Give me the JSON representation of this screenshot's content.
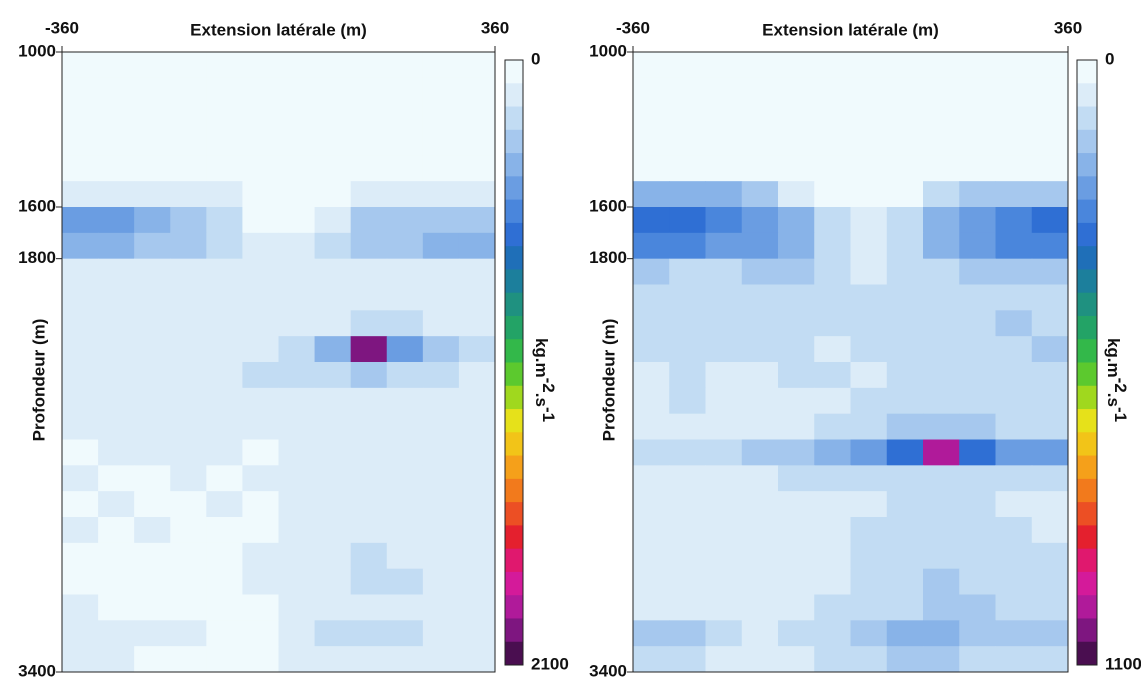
{
  "chart_data": [
    {
      "type": "heatmap",
      "xlabel": "Extension latérale (m)",
      "ylabel": "Profondeur (m)",
      "xlim": [
        -360,
        360
      ],
      "ylim": [
        3400,
        1000
      ],
      "xticks": [
        -360,
        360
      ],
      "yticks": [
        1000,
        1600,
        1800,
        3400
      ],
      "zlim": [
        0,
        2100
      ],
      "zticks": [
        0,
        2100
      ],
      "colorbar_label": [
        "kg.m",
        "-2",
        ".s",
        "-1"
      ],
      "colorscale": [
        "#f0fafd",
        "#dcecf8",
        "#c2dcf3",
        "#a6c8ee",
        "#88b3e8",
        "#6a9de2",
        "#4a86dc",
        "#2f6fd4",
        "#1f6fb8",
        "#1c7f9c",
        "#1f9180",
        "#23a366",
        "#33b84a",
        "#5cc92e",
        "#a0d81e",
        "#e6e11a",
        "#f2c418",
        "#f5a01a",
        "#f27a1c",
        "#ec4f24",
        "#e4202e",
        "#e0186e",
        "#d41a9a",
        "#b01a9a",
        "#7e1680",
        "#4a0e50"
      ],
      "x": [
        -330,
        -270,
        -210,
        -150,
        -90,
        -30,
        30,
        90,
        150,
        210,
        270,
        330
      ],
      "y": [
        1050,
        1150,
        1250,
        1350,
        1450,
        1550,
        1650,
        1750,
        1850,
        1950,
        2050,
        2150,
        2250,
        2350,
        2450,
        2550,
        2650,
        2750,
        2850,
        2950,
        3050,
        3150,
        3250,
        3350
      ],
      "z": [
        [
          0,
          0,
          0,
          0,
          0,
          0,
          0,
          0,
          0,
          0,
          0,
          0
        ],
        [
          0,
          0,
          0,
          0,
          0,
          0,
          0,
          0,
          0,
          0,
          0,
          0
        ],
        [
          0,
          0,
          0,
          0,
          0,
          0,
          0,
          0,
          0,
          0,
          0,
          0
        ],
        [
          0,
          0,
          0,
          0,
          0,
          0,
          0,
          0,
          0,
          0,
          0,
          0
        ],
        [
          0,
          0,
          0,
          0,
          0,
          0,
          0,
          0,
          0,
          0,
          0,
          0
        ],
        [
          80,
          80,
          80,
          60,
          40,
          0,
          0,
          0,
          40,
          60,
          60,
          60
        ],
        [
          350,
          350,
          300,
          250,
          100,
          0,
          0,
          60,
          200,
          250,
          250,
          250
        ],
        [
          300,
          300,
          250,
          200,
          150,
          50,
          40,
          100,
          200,
          250,
          300,
          300
        ],
        [
          40,
          60,
          60,
          40,
          80,
          60,
          40,
          60,
          80,
          60,
          40,
          40
        ],
        [
          20,
          40,
          20,
          40,
          40,
          30,
          40,
          60,
          80,
          60,
          60,
          40
        ],
        [
          30,
          30,
          20,
          20,
          30,
          40,
          30,
          80,
          120,
          100,
          80,
          60
        ],
        [
          40,
          60,
          30,
          20,
          40,
          60,
          100,
          300,
          2000,
          400,
          200,
          150
        ],
        [
          20,
          30,
          30,
          60,
          80,
          100,
          120,
          150,
          200,
          150,
          100,
          80
        ],
        [
          20,
          20,
          20,
          20,
          30,
          30,
          40,
          60,
          80,
          60,
          40,
          40
        ],
        [
          20,
          20,
          20,
          20,
          20,
          20,
          30,
          40,
          40,
          40,
          30,
          30
        ],
        [
          0,
          20,
          20,
          20,
          20,
          0,
          20,
          40,
          40,
          60,
          40,
          40
        ],
        [
          20,
          0,
          0,
          20,
          0,
          20,
          20,
          40,
          60,
          40,
          60,
          40
        ],
        [
          0,
          20,
          0,
          0,
          20,
          0,
          20,
          20,
          40,
          40,
          40,
          20
        ],
        [
          20,
          0,
          20,
          0,
          0,
          0,
          20,
          40,
          60,
          60,
          40,
          40
        ],
        [
          0,
          0,
          0,
          0,
          0,
          20,
          40,
          80,
          100,
          80,
          80,
          60
        ],
        [
          0,
          0,
          0,
          0,
          0,
          20,
          40,
          80,
          100,
          100,
          80,
          60
        ],
        [
          20,
          0,
          0,
          0,
          0,
          0,
          20,
          60,
          60,
          60,
          40,
          40
        ],
        [
          60,
          60,
          40,
          20,
          0,
          0,
          40,
          120,
          150,
          100,
          80,
          60
        ],
        [
          20,
          20,
          0,
          0,
          0,
          0,
          20,
          60,
          80,
          60,
          40,
          40
        ]
      ]
    },
    {
      "type": "heatmap",
      "xlabel": "Extension latérale (m)",
      "ylabel": "Profondeur (m)",
      "xlim": [
        -360,
        360
      ],
      "ylim": [
        3400,
        1000
      ],
      "xticks": [
        -360,
        360
      ],
      "yticks": [
        1000,
        1600,
        1800,
        3400
      ],
      "zlim": [
        0,
        1100
      ],
      "zticks": [
        0,
        1100
      ],
      "colorbar_label": [
        "kg.m",
        "-2",
        ".s",
        "-1"
      ],
      "colorscale": [
        "#f0fafd",
        "#dcecf8",
        "#c2dcf3",
        "#a6c8ee",
        "#88b3e8",
        "#6a9de2",
        "#4a86dc",
        "#2f6fd4",
        "#1f6fb8",
        "#1c7f9c",
        "#1f9180",
        "#23a366",
        "#33b84a",
        "#5cc92e",
        "#a0d81e",
        "#e6e11a",
        "#f2c418",
        "#f5a01a",
        "#f27a1c",
        "#ec4f24",
        "#e4202e",
        "#e0186e",
        "#d41a9a",
        "#b01a9a",
        "#7e1680",
        "#4a0e50"
      ],
      "x": [
        -330,
        -270,
        -210,
        -150,
        -90,
        -30,
        30,
        90,
        150,
        210,
        270,
        330
      ],
      "y": [
        1050,
        1150,
        1250,
        1350,
        1450,
        1550,
        1650,
        1750,
        1850,
        1950,
        2050,
        2150,
        2250,
        2350,
        2450,
        2550,
        2650,
        2750,
        2850,
        2950,
        3050,
        3150,
        3250,
        3350
      ],
      "z": [
        [
          0,
          0,
          0,
          0,
          0,
          0,
          0,
          0,
          0,
          0,
          0,
          0
        ],
        [
          0,
          0,
          0,
          0,
          0,
          0,
          0,
          0,
          0,
          0,
          0,
          0
        ],
        [
          0,
          0,
          0,
          0,
          0,
          0,
          0,
          0,
          0,
          0,
          0,
          0
        ],
        [
          0,
          0,
          0,
          0,
          0,
          0,
          0,
          0,
          0,
          0,
          0,
          0
        ],
        [
          0,
          0,
          0,
          0,
          0,
          0,
          0,
          0,
          0,
          0,
          0,
          0
        ],
        [
          150,
          150,
          150,
          100,
          40,
          0,
          0,
          0,
          60,
          100,
          100,
          100
        ],
        [
          300,
          300,
          250,
          200,
          150,
          60,
          20,
          80,
          150,
          200,
          250,
          300
        ],
        [
          250,
          250,
          200,
          200,
          150,
          60,
          20,
          60,
          150,
          200,
          250,
          250
        ],
        [
          100,
          80,
          60,
          120,
          100,
          60,
          40,
          60,
          80,
          100,
          100,
          100
        ],
        [
          60,
          60,
          60,
          60,
          60,
          80,
          60,
          60,
          80,
          80,
          80,
          80
        ],
        [
          60,
          80,
          60,
          60,
          60,
          80,
          60,
          60,
          80,
          80,
          100,
          80
        ],
        [
          60,
          60,
          60,
          60,
          60,
          40,
          60,
          80,
          80,
          60,
          80,
          100
        ],
        [
          40,
          60,
          40,
          40,
          60,
          60,
          40,
          60,
          60,
          60,
          60,
          60
        ],
        [
          40,
          60,
          40,
          40,
          40,
          40,
          60,
          60,
          60,
          60,
          60,
          60
        ],
        [
          40,
          40,
          40,
          40,
          40,
          60,
          60,
          100,
          120,
          100,
          80,
          80
        ],
        [
          60,
          60,
          80,
          100,
          120,
          150,
          200,
          300,
          1000,
          300,
          200,
          200
        ],
        [
          40,
          40,
          40,
          40,
          60,
          60,
          60,
          80,
          80,
          60,
          60,
          60
        ],
        [
          40,
          40,
          40,
          40,
          40,
          40,
          40,
          60,
          60,
          60,
          40,
          40
        ],
        [
          40,
          40,
          40,
          40,
          40,
          40,
          60,
          60,
          60,
          60,
          60,
          40
        ],
        [
          40,
          20,
          40,
          40,
          40,
          40,
          60,
          80,
          80,
          80,
          60,
          60
        ],
        [
          40,
          40,
          40,
          40,
          40,
          40,
          60,
          80,
          100,
          80,
          80,
          60
        ],
        [
          40,
          40,
          40,
          40,
          40,
          60,
          60,
          80,
          100,
          100,
          80,
          80
        ],
        [
          120,
          100,
          60,
          40,
          60,
          80,
          100,
          150,
          150,
          120,
          120,
          100
        ],
        [
          60,
          60,
          40,
          40,
          40,
          60,
          80,
          100,
          100,
          80,
          80,
          80
        ]
      ]
    }
  ]
}
